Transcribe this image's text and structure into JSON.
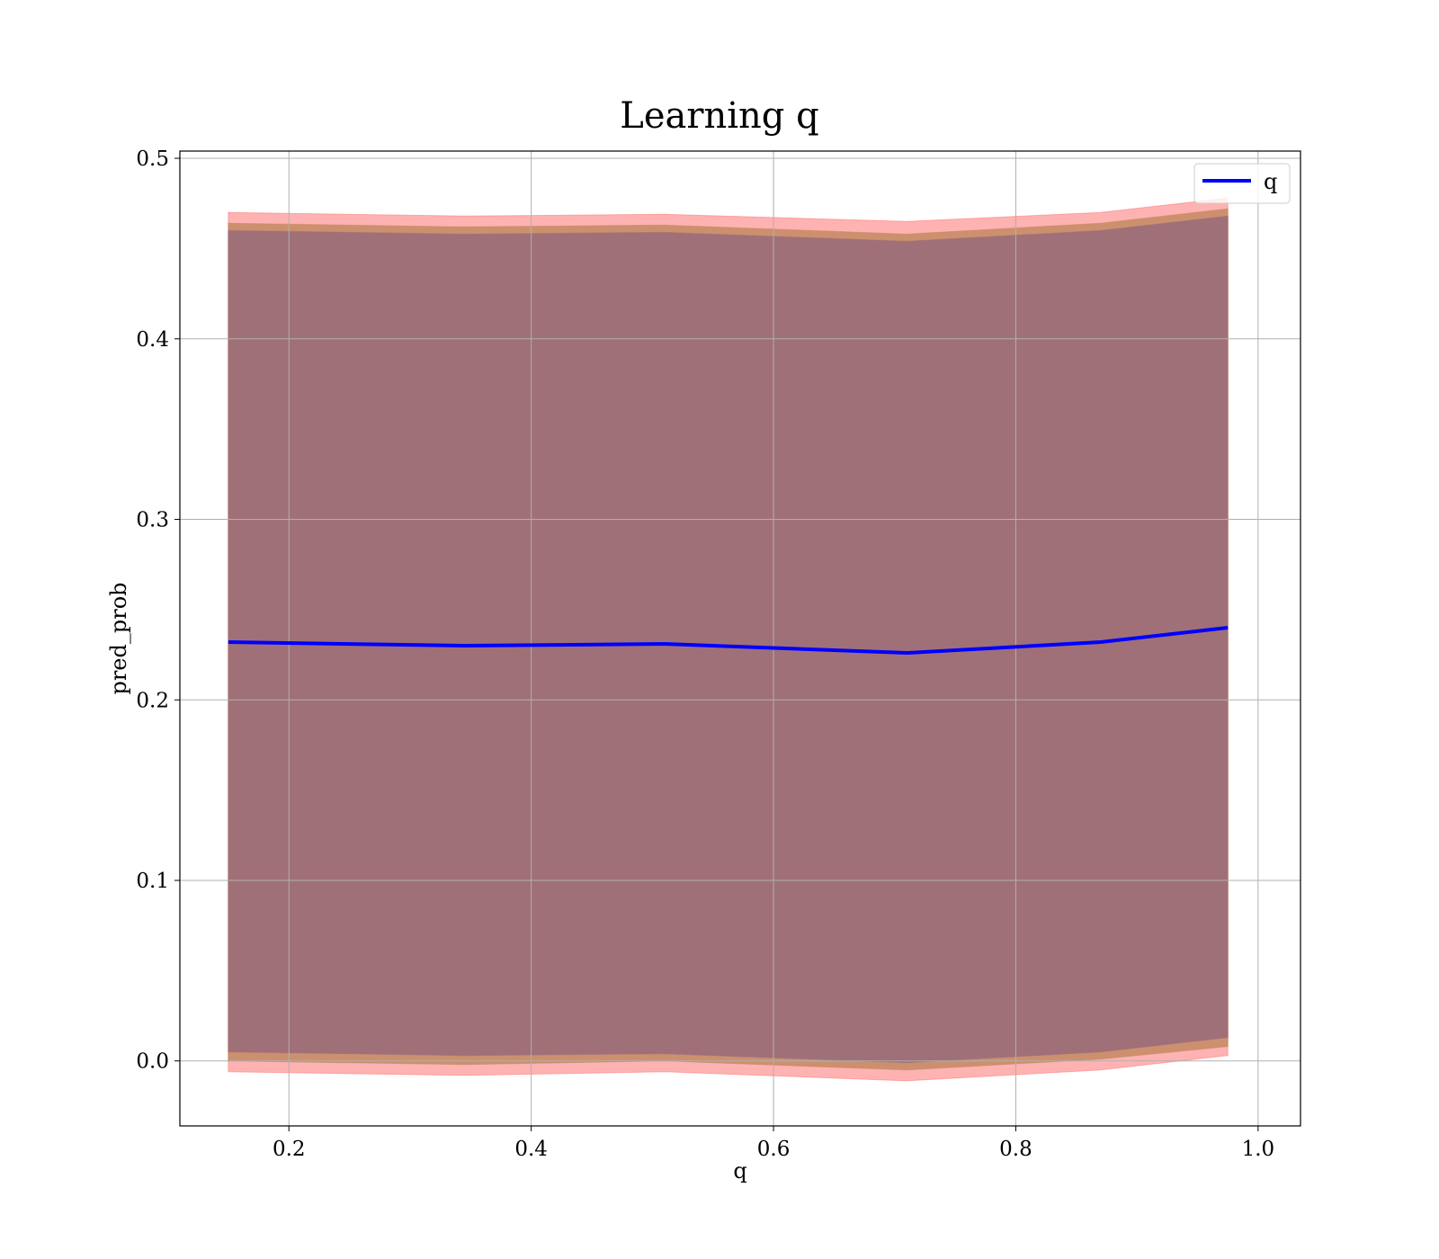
{
  "chart_data": {
    "type": "line",
    "title": "Learning q",
    "xlabel": "q",
    "ylabel": "pred_prob",
    "xlim": [
      0.11,
      1.035
    ],
    "ylim": [
      -0.036,
      0.504
    ],
    "xticks": [
      0.2,
      0.4,
      0.6,
      0.8,
      1.0
    ],
    "xtick_labels": [
      "0.2",
      "0.4",
      "0.6",
      "0.8",
      "1.0"
    ],
    "yticks": [
      0.0,
      0.1,
      0.2,
      0.3,
      0.4,
      0.5
    ],
    "ytick_labels": [
      "0.0",
      "0.1",
      "0.2",
      "0.3",
      "0.4",
      "0.5"
    ],
    "grid": true,
    "legend_position": "top-right",
    "x": [
      0.15,
      0.345,
      0.51,
      0.71,
      0.87,
      0.975
    ],
    "series": [
      {
        "name": "q",
        "color": "#0000ff",
        "values": [
          0.232,
          0.23,
          0.231,
          0.226,
          0.232,
          0.24
        ]
      }
    ],
    "bands": [
      {
        "color": "#ff7f7f",
        "opacity": 0.6,
        "upper": [
          0.47,
          0.468,
          0.469,
          0.465,
          0.47,
          0.478
        ],
        "lower": [
          -0.006,
          -0.008,
          -0.006,
          -0.011,
          -0.005,
          0.003
        ]
      },
      {
        "color": "#c48a62",
        "opacity": 0.85,
        "upper": [
          0.464,
          0.462,
          0.463,
          0.458,
          0.464,
          0.472
        ],
        "lower": [
          0.0,
          -0.002,
          0.0,
          -0.005,
          0.001,
          0.008
        ]
      },
      {
        "color": "#a07078",
        "opacity": 1.0,
        "upper": [
          0.46,
          0.458,
          0.459,
          0.454,
          0.46,
          0.468
        ],
        "lower": [
          0.005,
          0.003,
          0.004,
          -0.001,
          0.005,
          0.013
        ]
      }
    ]
  },
  "colors": {
    "frame": "#000000",
    "grid": "#b0b0b0",
    "legend_border": "#cccccc"
  }
}
